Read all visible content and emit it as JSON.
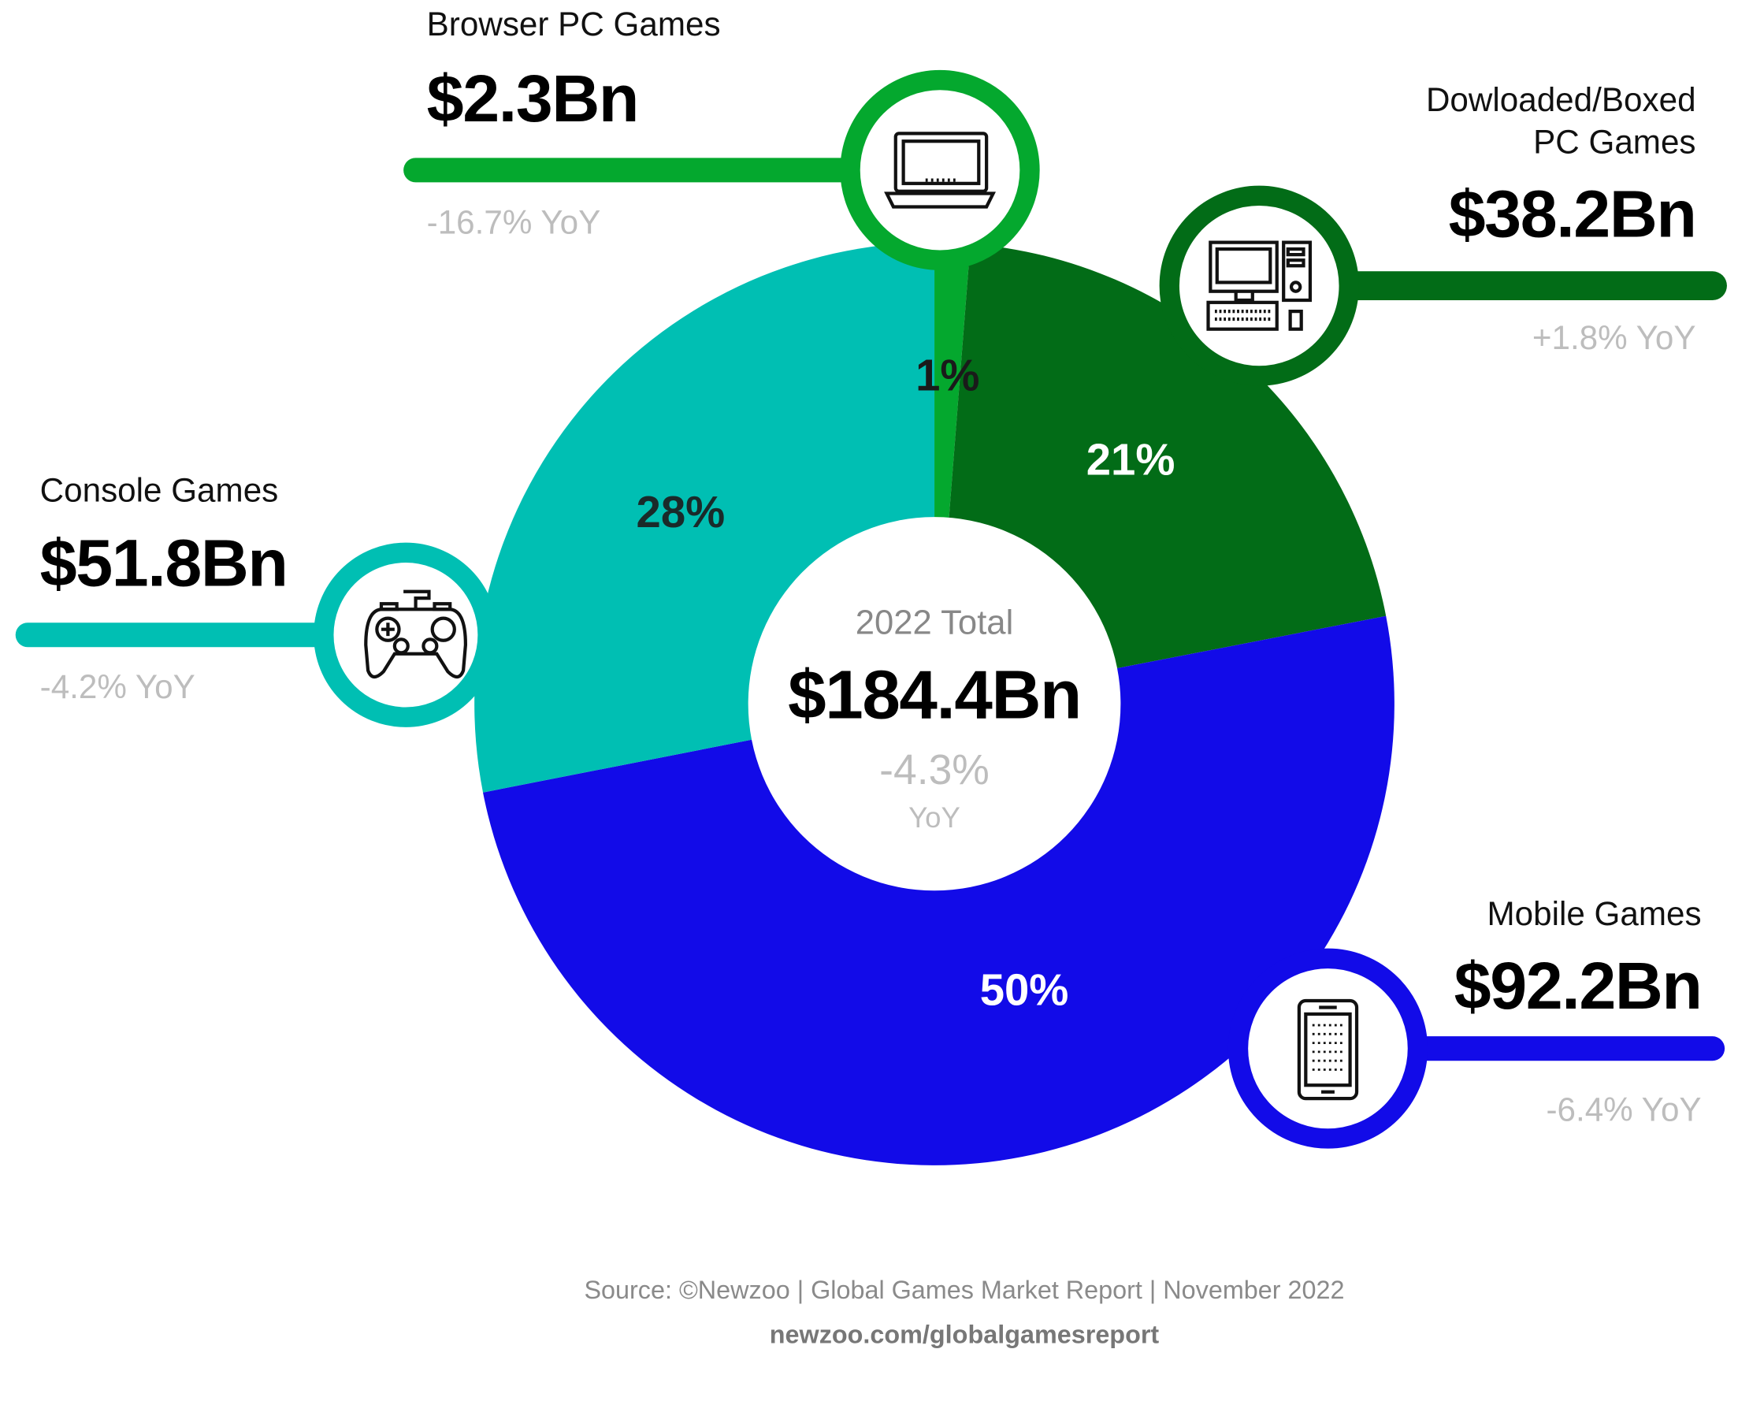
{
  "colors": {
    "browser": "#04A82E",
    "downloaded": "#026C17",
    "mobile": "#120BE8",
    "console": "#00BFB3"
  },
  "chart_data": {
    "type": "pie",
    "variant": "donut",
    "center": {
      "title": "2022 Total",
      "value": "$184.4Bn",
      "change": "-4.3%",
      "change_unit": "YoY"
    },
    "segments": [
      {
        "name": "Browser PC Games",
        "value": 2.3,
        "value_label": "$2.3Bn",
        "percent_label": "1%",
        "yoy": "-16.7% YoY",
        "icon": "laptop-icon"
      },
      {
        "name": "Dowloaded/Boxed PC Games",
        "name_lines": [
          "Dowloaded/Boxed",
          "PC Games"
        ],
        "value": 38.2,
        "value_label": "$38.2Bn",
        "percent_label": "21%",
        "yoy": "+1.8% YoY",
        "icon": "desktop-pc-icon"
      },
      {
        "name": "Mobile Games",
        "value": 92.2,
        "value_label": "$92.2Bn",
        "percent_label": "50%",
        "yoy": "-6.4% YoY",
        "icon": "smartphone-icon"
      },
      {
        "name": "Console Games",
        "value": 51.8,
        "value_label": "$51.8Bn",
        "percent_label": "28%",
        "yoy": "-4.2% YoY",
        "icon": "gamepad-icon"
      }
    ]
  },
  "footer": {
    "source": "Source: ©Newzoo | Global Games Market Report | November 2022",
    "url": "newzoo.com/globalgamesreport"
  }
}
